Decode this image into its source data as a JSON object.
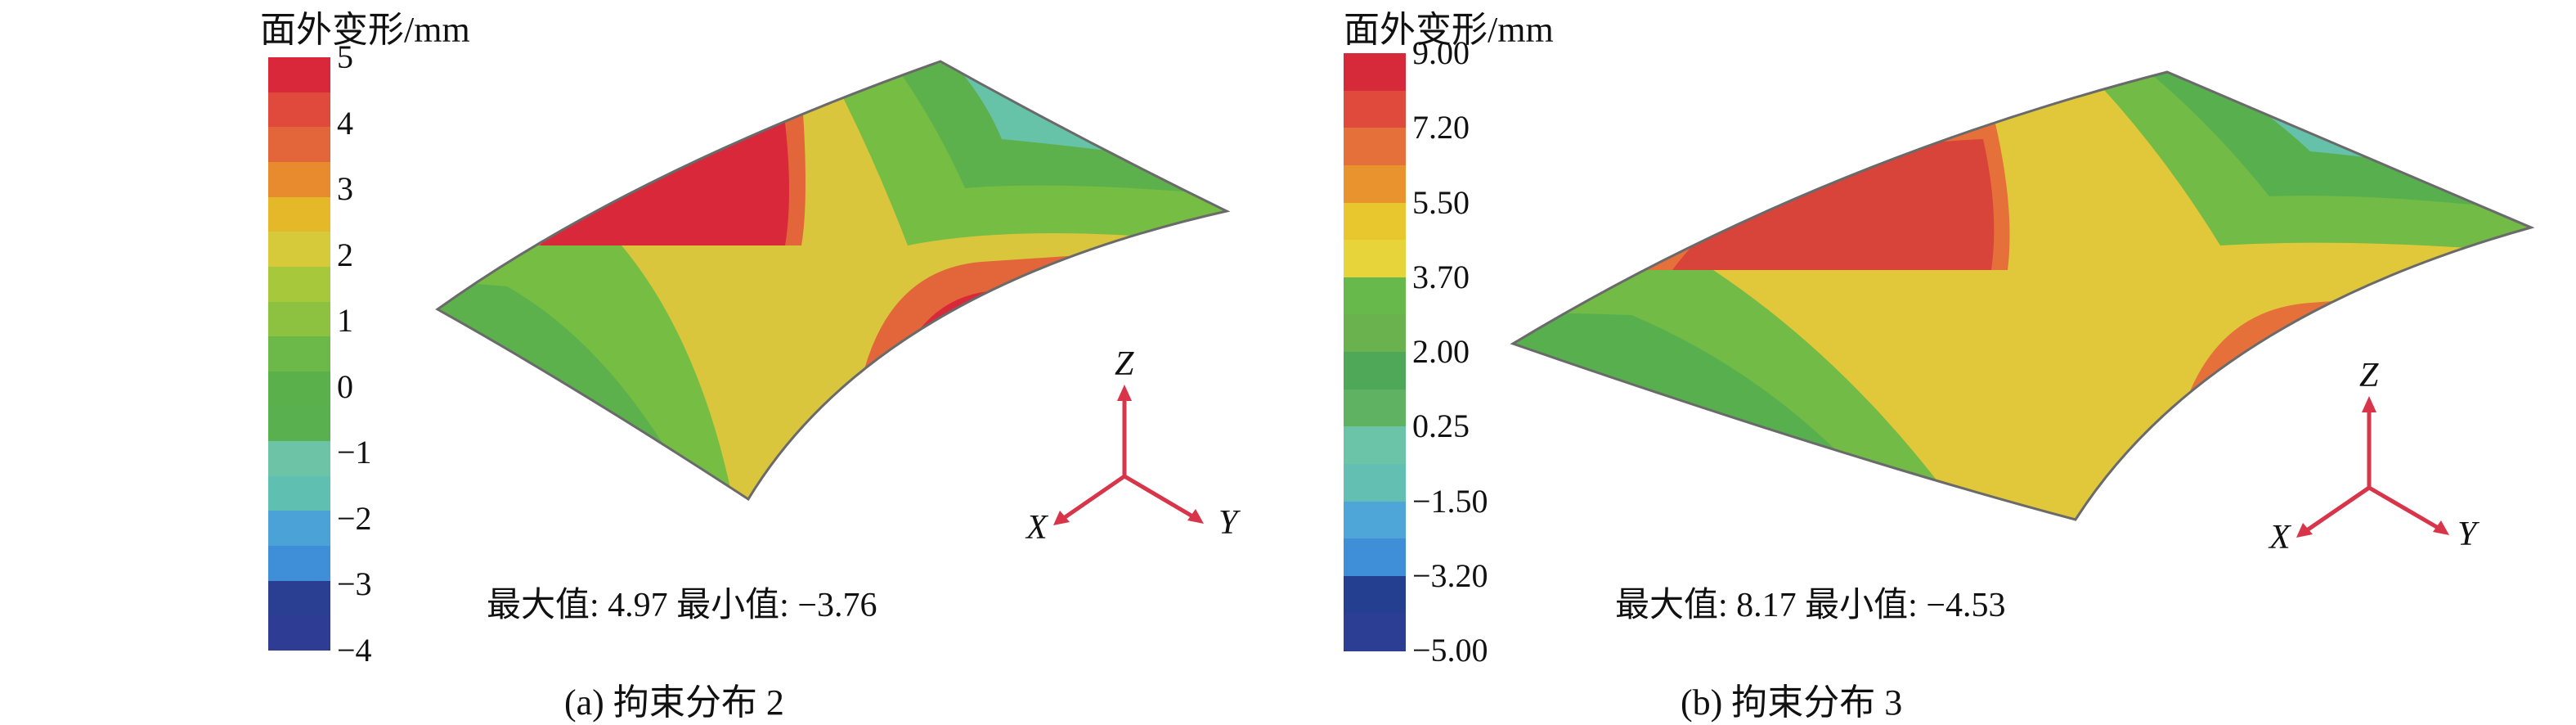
{
  "panels": [
    {
      "legend_title": "面外变形/mm",
      "legend_colors": [
        "#d8283a",
        "#e04a3c",
        "#e2663a",
        "#e88a2e",
        "#e4b828",
        "#d6c93a",
        "#a8c83c",
        "#8cc240",
        "#6cb848",
        "#5ab04a",
        "#58b04e",
        "#6cc3a6",
        "#5fbfb0",
        "#4aa2d6",
        "#3f8ed8",
        "#2a3f92",
        "#2e3d93"
      ],
      "ticks": [
        "5",
        "4",
        "3",
        "2",
        "1",
        "0",
        "−1",
        "−2",
        "−3",
        "−4"
      ],
      "stats": "最大值: 4.97   最小值: −3.76",
      "caption": "(a) 拘束分布 2",
      "axes": {
        "z": "Z",
        "x": "X",
        "y": "Y"
      }
    },
    {
      "legend_title": "面外变形/mm",
      "legend_colors": [
        "#d62a3a",
        "#e04a3c",
        "#e6703a",
        "#e9932e",
        "#e8c72e",
        "#e6d43a",
        "#66b94a",
        "#6ab24e",
        "#4fa858",
        "#5eb262",
        "#6cc4a8",
        "#63bfb2",
        "#4ea6d8",
        "#3f8fd8",
        "#243f8f",
        "#2c3e93"
      ],
      "ticks": [
        "9.00",
        "7.20",
        "5.50",
        "3.70",
        "2.00",
        "0.25",
        "−1.50",
        "−3.20",
        "−5.00"
      ],
      "stats": "最大值: 8.17   最小值: −4.53",
      "caption": "(b) 拘束分布 3",
      "axes": {
        "z": "Z",
        "x": "X",
        "y": "Y"
      }
    }
  ]
}
